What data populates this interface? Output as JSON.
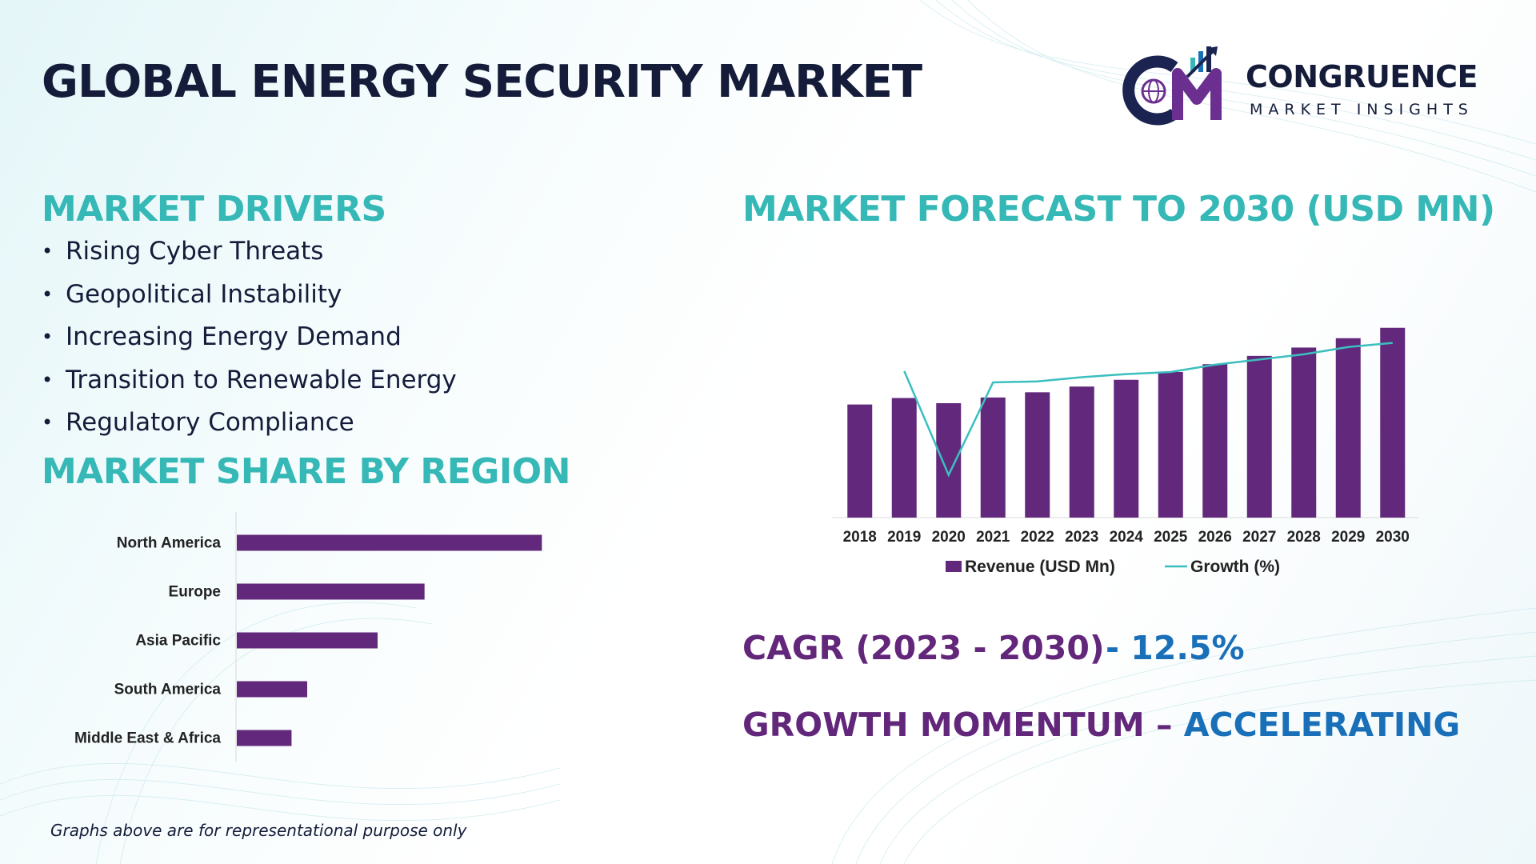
{
  "title": "GLOBAL ENERGY SECURITY MARKET",
  "logo": {
    "main_text": "CONGRUENCE",
    "sub_text": "MARKET INSIGHTS",
    "colors": {
      "navy": "#1b2350",
      "purple": "#6b2f8f",
      "teal": "#35b8b6",
      "blue": "#1a70b8"
    }
  },
  "drivers": {
    "heading": "MARKET DRIVERS",
    "items": [
      "Rising Cyber Threats",
      "Geopolitical Instability",
      "Increasing Energy Demand",
      "Transition to Renewable Energy",
      "Regulatory Compliance"
    ]
  },
  "region": {
    "heading": "MARKET SHARE BY REGION"
  },
  "forecast": {
    "heading": "MARKET FORECAST TO 2030 (USD MN)"
  },
  "cagr": {
    "label": "CAGR (2023 - 2030)",
    "value": "- 12.5%"
  },
  "momentum": {
    "label": "GROWTH MOMENTUM",
    "separator": " – ",
    "value": "ACCELERATING"
  },
  "footnote": "Graphs above are for representational purpose only",
  "colors": {
    "heading": "#35b8b6",
    "bar": "#62287c",
    "line": "#3bbfbe",
    "accent_purple": "#62267a",
    "accent_blue": "#1a70b8",
    "text": "#141c3a"
  },
  "chart_data": [
    {
      "type": "bar",
      "orientation": "horizontal",
      "categories": [
        "North America",
        "Europe",
        "Asia Pacific",
        "South America",
        "Middle East & Africa"
      ],
      "values": [
        39,
        24,
        18,
        9,
        7
      ],
      "title": "",
      "xlabel": "",
      "ylabel": "",
      "xlim": [
        0,
        45
      ],
      "grid": false,
      "legend": "none"
    },
    {
      "type": "bar",
      "categories": [
        "2018",
        "2019",
        "2020",
        "2021",
        "2022",
        "2023",
        "2024",
        "2025",
        "2026",
        "2027",
        "2028",
        "2029",
        "2030"
      ],
      "series": [
        {
          "name": "Revenue (USD Mn)",
          "type": "bar",
          "values": [
            43.5,
            46,
            44,
            46.2,
            48.2,
            50.4,
            53,
            56,
            59,
            62.2,
            65.4,
            69,
            73
          ]
        },
        {
          "name": "Growth (%)",
          "type": "line",
          "values": [
            null,
            8.1,
            -1.9,
            7.0,
            7.1,
            7.5,
            7.8,
            8.0,
            8.7,
            9.2,
            9.7,
            10.4,
            10.8
          ]
        }
      ],
      "title": "",
      "xlabel": "",
      "ylabel": "",
      "ylim": [
        0,
        80
      ],
      "y2lim": [
        -6,
        14
      ],
      "grid": false,
      "legend": "bottom"
    }
  ]
}
